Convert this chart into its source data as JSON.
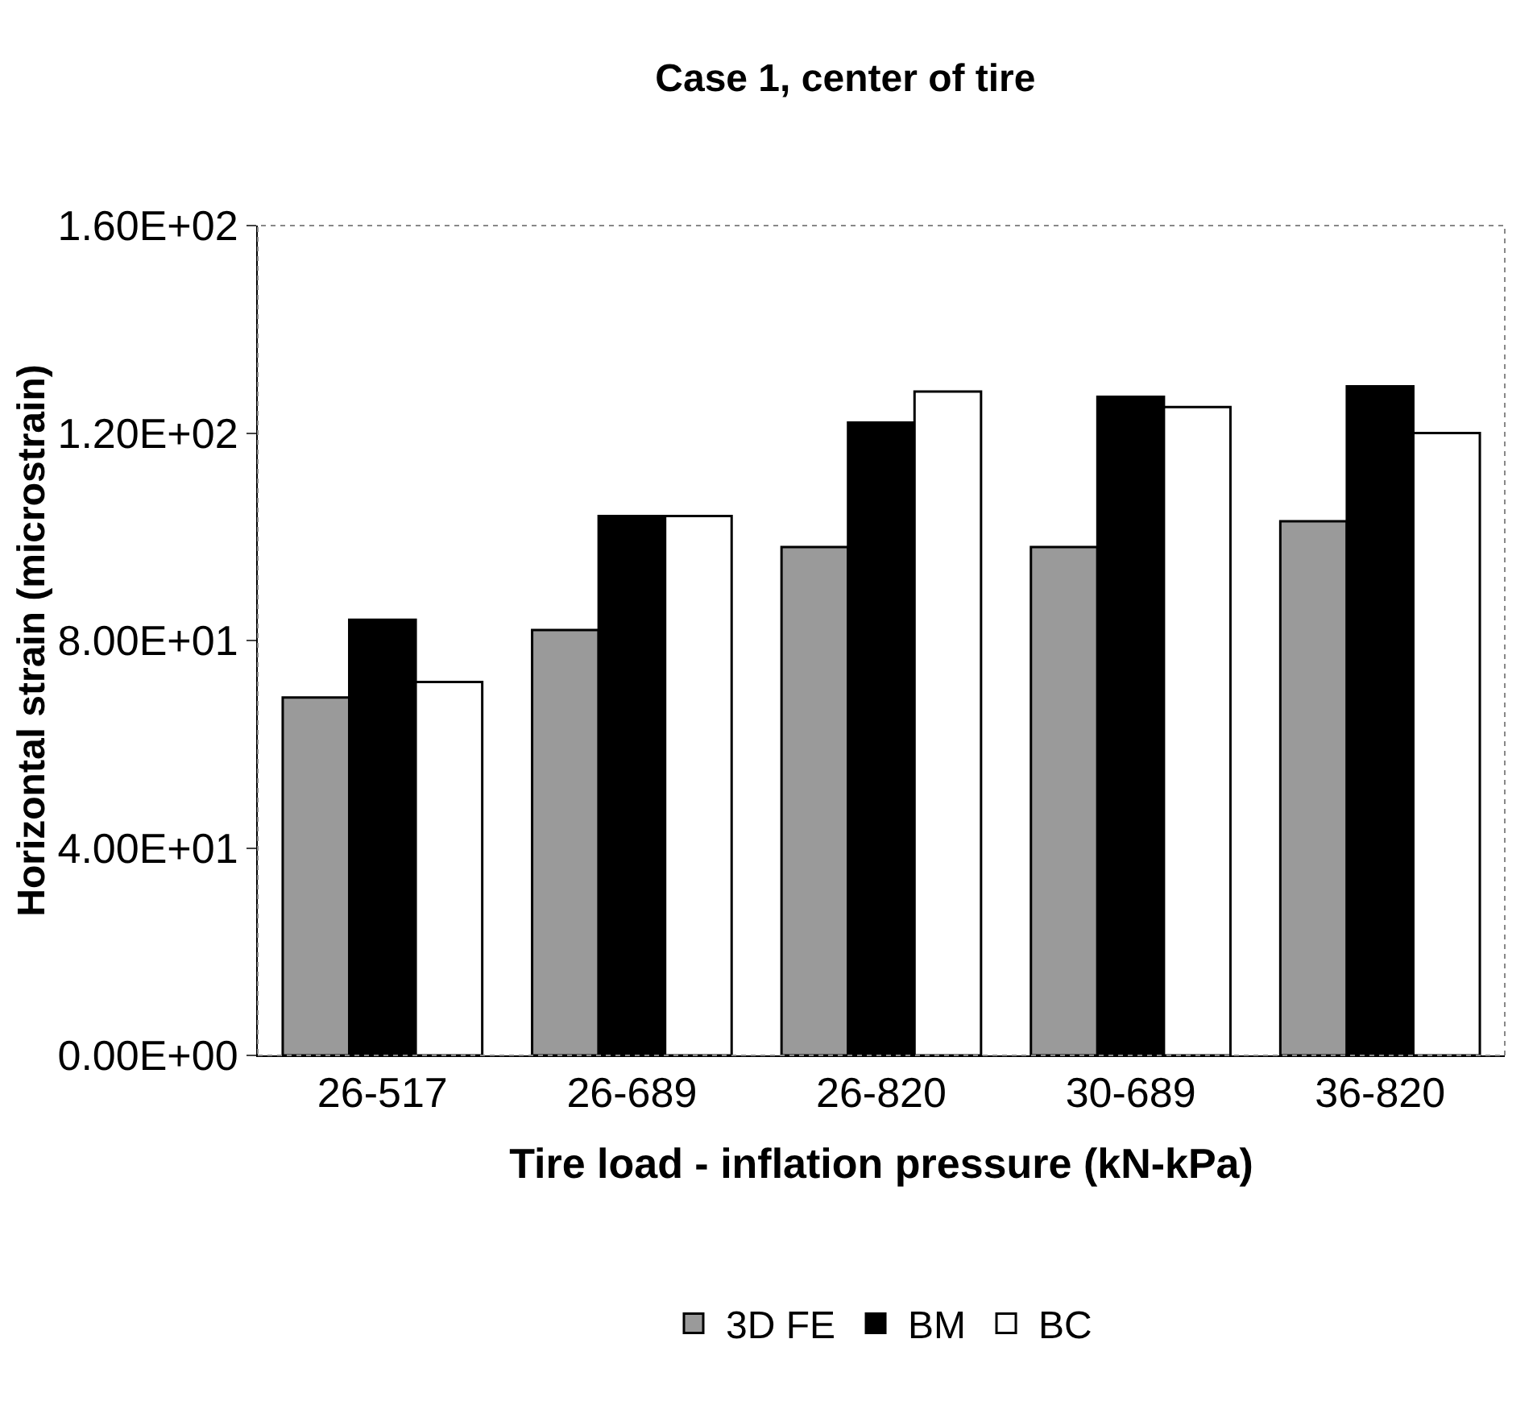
{
  "chart_data": {
    "type": "bar",
    "title": "Case 1, center of tire",
    "xlabel": "Tire load - inflation pressure (kN-kPa)",
    "ylabel": "Horizontal strain (microstrain)",
    "categories": [
      "26-517",
      "26-689",
      "26-820",
      "30-689",
      "36-820"
    ],
    "series": [
      {
        "name": "3D FE",
        "color": "#9a9a9a",
        "values": [
          69,
          82,
          98,
          98,
          103
        ]
      },
      {
        "name": "BM",
        "color": "#000000",
        "values": [
          84,
          104,
          122,
          127,
          129
        ]
      },
      {
        "name": "BC",
        "color": "#ffffff",
        "values": [
          72,
          104,
          128,
          125,
          120
        ]
      }
    ],
    "ylim": [
      0,
      160
    ],
    "yticks": [
      {
        "value": 0,
        "label": "0.00E+00"
      },
      {
        "value": 40,
        "label": "4.00E+01"
      },
      {
        "value": 80,
        "label": "8.00E+01"
      },
      {
        "value": 120,
        "label": "1.20E+02"
      },
      {
        "value": 160,
        "label": "1.60E+02"
      }
    ],
    "grid": false,
    "legend": "bottom"
  }
}
